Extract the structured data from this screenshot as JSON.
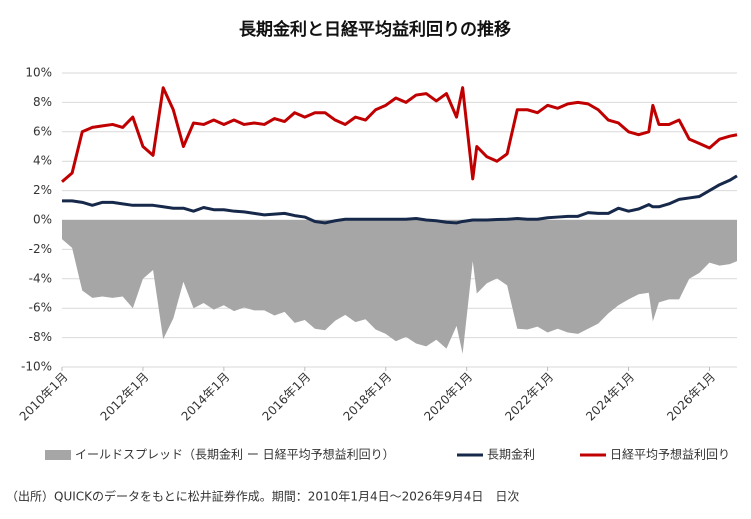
{
  "chart_data": {
    "type": "line",
    "title": "長期金利と日経平均益利回りの推移",
    "source": "（出所）QUICKのデータをもとに松井証券作成。期間：2010年1月4日～2026年9月4日　日次",
    "x": [
      2010.0,
      2010.25,
      2010.5,
      2010.75,
      2011.0,
      2011.25,
      2011.5,
      2011.75,
      2012.0,
      2012.25,
      2012.5,
      2012.75,
      2013.0,
      2013.25,
      2013.5,
      2013.75,
      2014.0,
      2014.25,
      2014.5,
      2014.75,
      2015.0,
      2015.25,
      2015.5,
      2015.75,
      2016.0,
      2016.25,
      2016.5,
      2016.75,
      2017.0,
      2017.25,
      2017.5,
      2017.75,
      2018.0,
      2018.25,
      2018.5,
      2018.75,
      2019.0,
      2019.25,
      2019.5,
      2019.75,
      2019.9,
      2020.15,
      2020.25,
      2020.5,
      2020.75,
      2021.0,
      2021.25,
      2021.5,
      2021.75,
      2022.0,
      2022.25,
      2022.5,
      2022.75,
      2023.0,
      2023.25,
      2023.5,
      2023.75,
      2024.0,
      2024.25,
      2024.5,
      2024.6,
      2024.75,
      2025.0,
      2025.25,
      2025.5,
      2025.75,
      2026.0,
      2026.25,
      2026.5,
      2026.68
    ],
    "series": [
      {
        "name": "イールドスプレッド（長期金利 ー 日経平均予想益利回り）",
        "color": "#a6a6a6",
        "style": "area",
        "values": [
          -1.3,
          -1.9,
          -4.8,
          -5.3,
          -5.2,
          -5.3,
          -5.2,
          -6.0,
          -4.0,
          -3.4,
          -8.1,
          -6.7,
          -4.2,
          -6.0,
          -5.65,
          -6.1,
          -5.8,
          -6.2,
          -5.95,
          -6.15,
          -6.15,
          -6.5,
          -6.25,
          -7.0,
          -6.8,
          -7.4,
          -7.5,
          -6.85,
          -6.45,
          -6.95,
          -6.75,
          -7.45,
          -7.75,
          -8.25,
          -7.95,
          -8.4,
          -8.6,
          -8.15,
          -8.75,
          -7.2,
          -9.1,
          -2.8,
          -5.0,
          -4.3,
          -3.97,
          -4.45,
          -7.4,
          -7.45,
          -7.25,
          -7.65,
          -7.4,
          -7.65,
          -7.75,
          -7.4,
          -7.05,
          -6.35,
          -5.8,
          -5.4,
          -5.05,
          -4.95,
          -6.9,
          -5.6,
          -5.4,
          -5.4,
          -4.0,
          -3.6,
          -2.9,
          -3.1,
          -3.0,
          -2.8
        ]
      },
      {
        "name": "長期金利",
        "color": "#17294a",
        "style": "line",
        "values": [
          1.3,
          1.3,
          1.2,
          1.0,
          1.2,
          1.2,
          1.1,
          1.0,
          1.0,
          1.0,
          0.9,
          0.8,
          0.8,
          0.6,
          0.85,
          0.7,
          0.7,
          0.6,
          0.55,
          0.45,
          0.35,
          0.4,
          0.45,
          0.3,
          0.2,
          -0.1,
          -0.2,
          -0.05,
          0.05,
          0.05,
          0.05,
          0.05,
          0.05,
          0.05,
          0.05,
          0.1,
          0.0,
          -0.05,
          -0.15,
          -0.2,
          -0.1,
          0.0,
          0.0,
          0.0,
          0.03,
          0.05,
          0.1,
          0.05,
          0.05,
          0.15,
          0.2,
          0.25,
          0.25,
          0.5,
          0.45,
          0.45,
          0.8,
          0.6,
          0.75,
          1.05,
          0.9,
          0.9,
          1.1,
          1.4,
          1.5,
          1.6,
          2.0,
          2.4,
          2.7,
          3.0
        ]
      },
      {
        "name": "日経平均予想益利回り",
        "color": "#c00000",
        "style": "line",
        "values": [
          2.6,
          3.2,
          6.0,
          6.3,
          6.4,
          6.5,
          6.3,
          7.0,
          5.0,
          4.4,
          9.0,
          7.5,
          5.0,
          6.6,
          6.5,
          6.8,
          6.5,
          6.8,
          6.5,
          6.6,
          6.5,
          6.9,
          6.7,
          7.3,
          7.0,
          7.3,
          7.3,
          6.8,
          6.5,
          7.0,
          6.8,
          7.5,
          7.8,
          8.3,
          8.0,
          8.5,
          8.6,
          8.1,
          8.6,
          7.0,
          9.0,
          2.8,
          5.0,
          4.3,
          4.0,
          4.5,
          7.5,
          7.5,
          7.3,
          7.8,
          7.6,
          7.9,
          8.0,
          7.9,
          7.5,
          6.8,
          6.6,
          6.0,
          5.8,
          6.0,
          7.8,
          6.5,
          6.5,
          6.8,
          5.5,
          5.2,
          4.9,
          5.5,
          5.7,
          5.8
        ]
      }
    ],
    "xlim": [
      2010.0,
      2026.68
    ],
    "xticks": [
      {
        "value": 2010,
        "label": "2010年1月"
      },
      {
        "value": 2012,
        "label": "2012年1月"
      },
      {
        "value": 2014,
        "label": "2014年1月"
      },
      {
        "value": 2016,
        "label": "2016年1月"
      },
      {
        "value": 2018,
        "label": "2018年1月"
      },
      {
        "value": 2020,
        "label": "2020年1月"
      },
      {
        "value": 2022,
        "label": "2022年1月"
      },
      {
        "value": 2024,
        "label": "2024年1月"
      },
      {
        "value": 2026,
        "label": "2026年1月"
      }
    ],
    "ylim": [
      -10,
      10
    ],
    "yticks": [
      {
        "value": -10,
        "label": "-10%"
      },
      {
        "value": -8,
        "label": "-8%"
      },
      {
        "value": -6,
        "label": "-6%"
      },
      {
        "value": -4,
        "label": "-4%"
      },
      {
        "value": -2,
        "label": "-2%"
      },
      {
        "value": 0,
        "label": "0%"
      },
      {
        "value": 2,
        "label": "2%"
      },
      {
        "value": 4,
        "label": "4%"
      },
      {
        "value": 6,
        "label": "6%"
      },
      {
        "value": 8,
        "label": "8%"
      },
      {
        "value": 10,
        "label": "10%"
      }
    ],
    "grid": true,
    "legend": "bottom"
  }
}
